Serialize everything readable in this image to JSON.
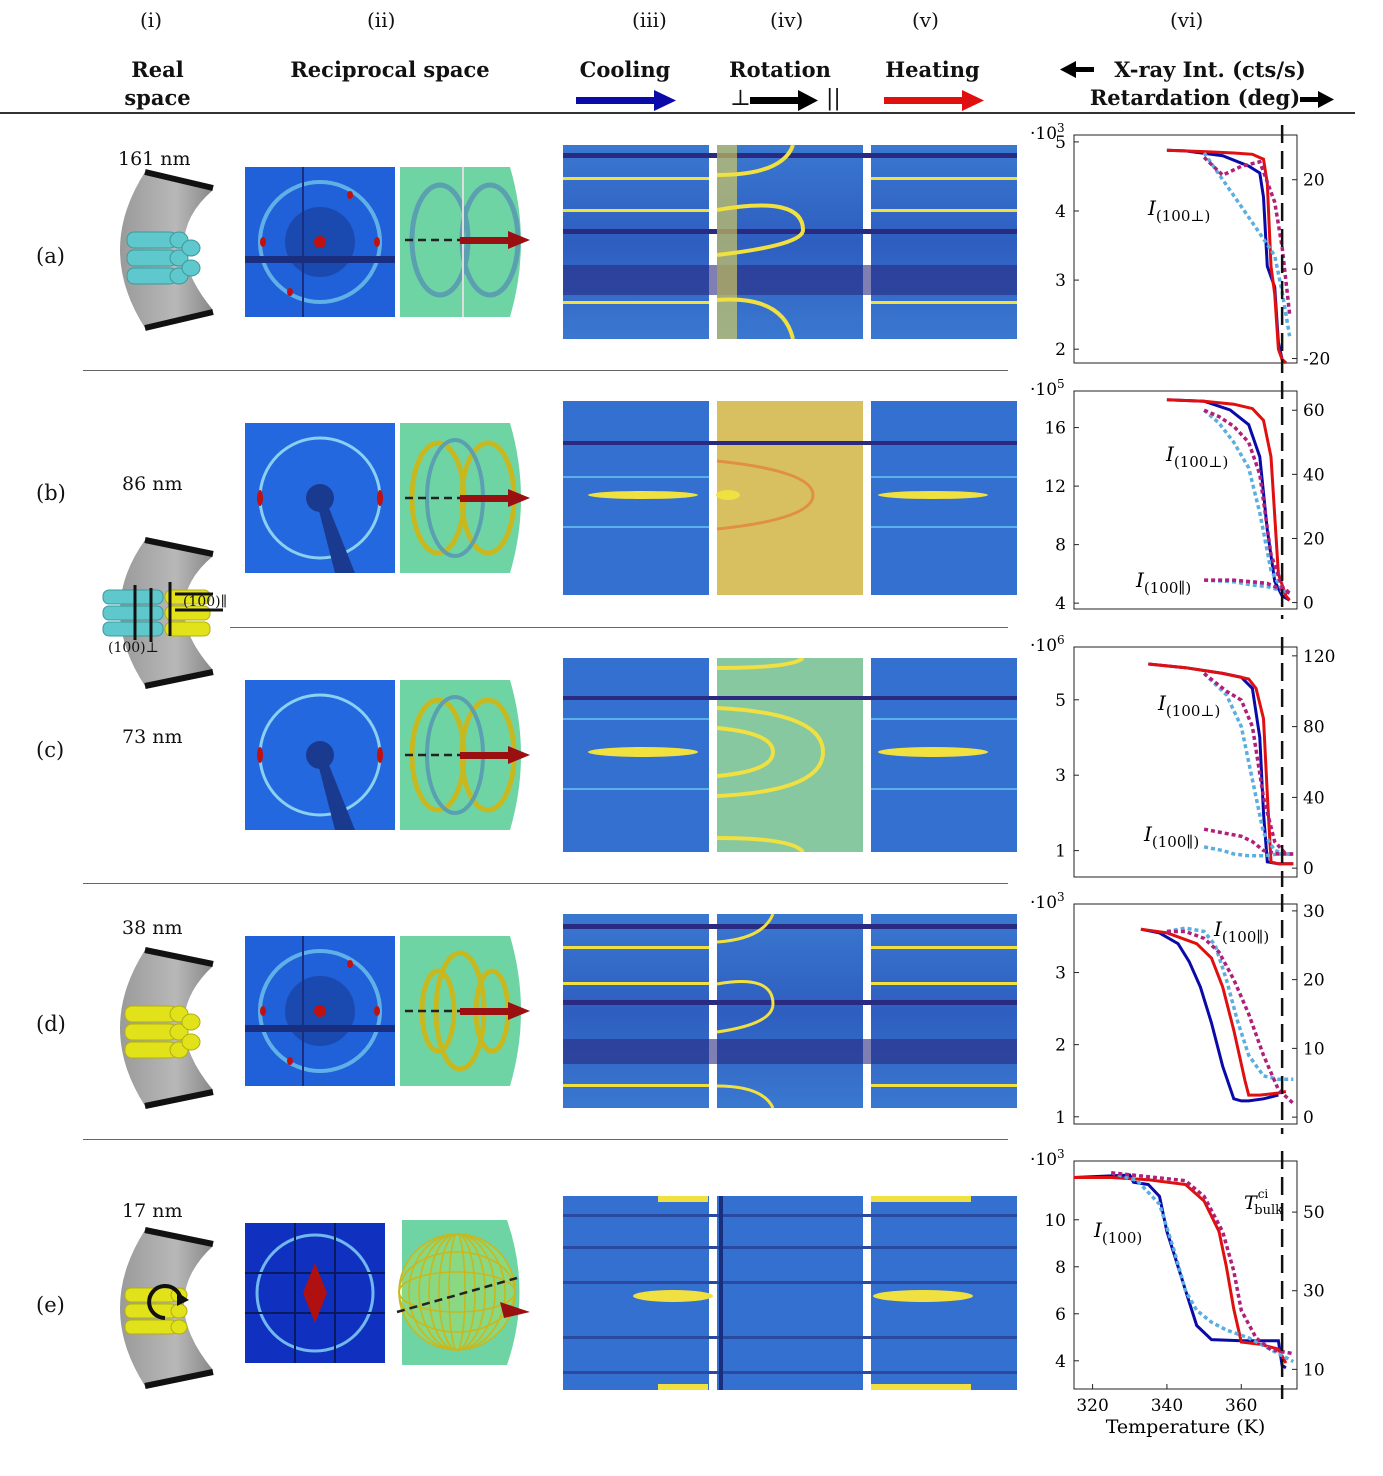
{
  "columns": {
    "i": "(i)",
    "ii": "(ii)",
    "iii": "(iii)",
    "iv": "(iv)",
    "v": "(v)",
    "vi": "(vi)"
  },
  "headers": {
    "real_space_1": "Real",
    "real_space_2": "space",
    "reciprocal": "Reciprocal space",
    "cooling": "Cooling",
    "rotation": "Rotation",
    "perp": "⊥",
    "par": "||",
    "heating": "Heating",
    "xray": "X-ray Int. (cts/s)",
    "retardation": "Retardation (deg)"
  },
  "rows": [
    {
      "label": "(a)",
      "size": "161 nm"
    },
    {
      "label": "(b)",
      "size": "86 nm"
    },
    {
      "label": "(c)",
      "size": "73 nm"
    },
    {
      "label": "(d)",
      "size": "38 nm"
    },
    {
      "label": "(e)",
      "size": "17 nm"
    }
  ],
  "annotations": {
    "perp_plane": "(100)⊥",
    "par_plane": "(100)∥"
  },
  "colors": {
    "cooling": "#0a0aa8",
    "heating": "#e01010",
    "rotation": "#000000",
    "dotted_blue": "#5aaee0",
    "dotted_magenta": "#b0207a",
    "cylinder_cyan": "#5ec8cc",
    "cylinder_yellow": "#e2e21a"
  },
  "chart_data": [
    {
      "type": "line",
      "panel": "(a)",
      "multiplier": "·10^3",
      "left_ticks": [
        "2",
        "3",
        "4",
        "5"
      ],
      "left_range": [
        1.8,
        5.1
      ],
      "right_ticks": [
        "-20",
        "0",
        "20"
      ],
      "right_range": [
        -21,
        30
      ],
      "annotation": "I(100⊥)",
      "xlim": [
        315,
        375
      ],
      "series": [
        {
          "name": "cooling",
          "axis": "left",
          "x": [
            340,
            345,
            355,
            362,
            365,
            366,
            367,
            369,
            370,
            371,
            372
          ],
          "y": [
            4.88,
            4.87,
            4.8,
            4.65,
            4.55,
            4.2,
            3.2,
            2.9,
            2.1,
            1.85,
            1.8
          ]
        },
        {
          "name": "heating",
          "axis": "left",
          "x": [
            340,
            350,
            358,
            363,
            366,
            367,
            368,
            369,
            370,
            371,
            372
          ],
          "y": [
            4.88,
            4.86,
            4.84,
            4.82,
            4.75,
            4.4,
            3.2,
            2.8,
            2.0,
            1.85,
            1.8
          ]
        },
        {
          "name": "retard_cool",
          "axis": "right",
          "x": [
            350,
            355,
            360,
            365,
            369,
            371,
            373
          ],
          "y": [
            26,
            20,
            14,
            8,
            3,
            -5,
            -15
          ]
        },
        {
          "name": "retard_heat",
          "axis": "right",
          "x": [
            350,
            355,
            360,
            365,
            369,
            371,
            373
          ],
          "y": [
            25,
            21,
            23,
            24,
            15,
            5,
            -10
          ]
        }
      ]
    },
    {
      "type": "line",
      "panel": "(b)",
      "multiplier": "·10^5",
      "left_ticks": [
        "4",
        "8",
        "12",
        "16"
      ],
      "left_range": [
        3.6,
        18.5
      ],
      "right_ticks": [
        "0",
        "20",
        "40",
        "60"
      ],
      "right_range": [
        -2,
        66
      ],
      "annotations": [
        "I(100⊥)",
        "I(100∥)"
      ],
      "xlim": [
        315,
        375
      ],
      "series": [
        {
          "name": "cooling",
          "axis": "left",
          "x": [
            340,
            350,
            357,
            362,
            365,
            367,
            369,
            371,
            373
          ],
          "y": [
            17.9,
            17.8,
            17.2,
            16.2,
            14,
            9,
            5.5,
            4.5,
            4.2
          ]
        },
        {
          "name": "heating",
          "axis": "left",
          "x": [
            340,
            350,
            358,
            363,
            366,
            368,
            369,
            370,
            372,
            373
          ],
          "y": [
            17.9,
            17.8,
            17.6,
            17.3,
            16.5,
            14,
            10,
            6,
            4.5,
            4.2
          ]
        },
        {
          "name": "retard_perp_cool",
          "axis": "right",
          "x": [
            350,
            354,
            358,
            362,
            365,
            368,
            371,
            373
          ],
          "y": [
            60,
            56,
            50,
            42,
            28,
            10,
            4,
            3
          ]
        },
        {
          "name": "retard_perp_heat",
          "axis": "right",
          "x": [
            350,
            354,
            358,
            362,
            365,
            368,
            371,
            373
          ],
          "y": [
            60,
            58,
            55,
            50,
            40,
            15,
            5,
            3
          ]
        },
        {
          "name": "retard_par_cool",
          "axis": "right",
          "x": [
            350,
            358,
            363,
            367,
            370,
            373
          ],
          "y": [
            7,
            6.5,
            5.5,
            5,
            4,
            3
          ]
        },
        {
          "name": "retard_par_heat",
          "axis": "right",
          "x": [
            350,
            358,
            363,
            367,
            370,
            373
          ],
          "y": [
            7,
            7,
            6.5,
            6,
            4.5,
            3
          ]
        }
      ]
    },
    {
      "type": "line",
      "panel": "(c)",
      "multiplier": "·10^6",
      "left_ticks": [
        "1",
        "3",
        "5"
      ],
      "left_range": [
        0.3,
        6.4
      ],
      "right_ticks": [
        "0",
        "40",
        "80",
        "120"
      ],
      "right_range": [
        -5,
        125
      ],
      "annotations": [
        "I(100⊥)",
        "I(100∥)"
      ],
      "xlim": [
        315,
        375
      ],
      "series": [
        {
          "name": "cooling",
          "axis": "left",
          "x": [
            335,
            345,
            355,
            360,
            363,
            365,
            366,
            367,
            370,
            374
          ],
          "y": [
            5.95,
            5.85,
            5.7,
            5.6,
            5.3,
            4,
            2,
            0.7,
            0.65,
            0.65
          ]
        },
        {
          "name": "heating",
          "axis": "left",
          "x": [
            335,
            345,
            355,
            362,
            364,
            366,
            367,
            368,
            370,
            374
          ],
          "y": [
            5.95,
            5.85,
            5.7,
            5.55,
            5.3,
            4.5,
            2.5,
            0.7,
            0.65,
            0.65
          ]
        },
        {
          "name": "retard_perp_cool",
          "axis": "right",
          "x": [
            350,
            356,
            360,
            363,
            366,
            369,
            372,
            374
          ],
          "y": [
            110,
            98,
            80,
            50,
            20,
            10,
            8,
            8
          ]
        },
        {
          "name": "retard_perp_heat",
          "axis": "right",
          "x": [
            350,
            356,
            360,
            363,
            366,
            369,
            372,
            374
          ],
          "y": [
            110,
            100,
            95,
            80,
            40,
            15,
            8,
            8
          ]
        },
        {
          "name": "retard_par_cool",
          "axis": "right",
          "x": [
            350,
            355,
            358,
            362,
            366,
            370,
            374
          ],
          "y": [
            12,
            10,
            8,
            7,
            7,
            8,
            8
          ]
        },
        {
          "name": "retard_par_heat",
          "axis": "right",
          "x": [
            350,
            355,
            360,
            363,
            366,
            370,
            374
          ],
          "y": [
            22,
            20,
            18,
            15,
            10,
            8,
            8
          ]
        }
      ]
    },
    {
      "type": "line",
      "panel": "(d)",
      "multiplier": "·10^3",
      "left_ticks": [
        "1",
        "2",
        "3"
      ],
      "left_range": [
        0.9,
        3.95
      ],
      "right_ticks": [
        "0",
        "10",
        "20",
        "30"
      ],
      "right_range": [
        -1,
        31
      ],
      "annotation": "I(100∥)",
      "xlim": [
        315,
        375
      ],
      "series": [
        {
          "name": "cooling",
          "axis": "left",
          "x": [
            333,
            338,
            343,
            346,
            349,
            352,
            355,
            358,
            360,
            362,
            366,
            370
          ],
          "y": [
            3.6,
            3.55,
            3.4,
            3.15,
            2.8,
            2.3,
            1.7,
            1.25,
            1.22,
            1.22,
            1.25,
            1.3
          ]
        },
        {
          "name": "heating",
          "axis": "left",
          "x": [
            333,
            340,
            348,
            352,
            355,
            358,
            361,
            362,
            365,
            370,
            372
          ],
          "y": [
            3.6,
            3.55,
            3.4,
            3.2,
            2.8,
            2.2,
            1.5,
            1.3,
            1.3,
            1.33,
            1.35
          ]
        },
        {
          "name": "retard_cool",
          "axis": "right",
          "x": [
            340,
            345,
            350,
            353,
            356,
            359,
            362,
            366,
            370,
            374
          ],
          "y": [
            27,
            27.5,
            27,
            25,
            20,
            14,
            9,
            6,
            5.5,
            5.5
          ]
        },
        {
          "name": "retard_heat",
          "axis": "right",
          "x": [
            340,
            345,
            350,
            354,
            358,
            362,
            366,
            370,
            374
          ],
          "y": [
            27,
            27,
            26,
            24,
            20,
            15,
            9,
            4,
            2
          ]
        }
      ]
    },
    {
      "type": "line",
      "panel": "(e)",
      "multiplier": "·10^3",
      "left_ticks": [
        "4",
        "6",
        "8",
        "10"
      ],
      "left_range": [
        2.8,
        12.5
      ],
      "right_ticks": [
        "10",
        "30",
        "50"
      ],
      "right_range": [
        5,
        63
      ],
      "annotations": [
        "I(100)",
        "T^ci_bulk"
      ],
      "xlabel": "Temperature (K)",
      "x_ticks": [
        "320",
        "340",
        "360"
      ],
      "xlim": [
        315,
        375
      ],
      "series": [
        {
          "name": "cooling",
          "axis": "left",
          "x": [
            315,
            330,
            331,
            335,
            338,
            340,
            342,
            345,
            348,
            352,
            360,
            370,
            371,
            372
          ],
          "y": [
            11.8,
            11.9,
            11.6,
            11.5,
            11,
            9.5,
            8.5,
            7,
            5.5,
            4.9,
            4.85,
            4.85,
            3.8,
            3.7
          ]
        },
        {
          "name": "heating",
          "axis": "left",
          "x": [
            315,
            325,
            335,
            345,
            350,
            354,
            356,
            358,
            360,
            365,
            370,
            372
          ],
          "y": [
            11.8,
            11.8,
            11.7,
            11.5,
            10.8,
            9.5,
            8,
            6.2,
            4.8,
            4.7,
            4.5,
            3.9
          ]
        },
        {
          "name": "retard_cool",
          "axis": "right",
          "x": [
            325,
            332,
            338,
            342,
            345,
            348,
            352,
            356,
            362,
            368,
            374
          ],
          "y": [
            60,
            58,
            52,
            40,
            30,
            25,
            22,
            20,
            18,
            15,
            12
          ]
        },
        {
          "name": "retard_heat",
          "axis": "right",
          "x": [
            325,
            335,
            345,
            350,
            355,
            358,
            360,
            364,
            368,
            374
          ],
          "y": [
            60,
            59,
            58,
            54,
            45,
            35,
            25,
            18,
            15,
            14
          ]
        }
      ]
    }
  ]
}
